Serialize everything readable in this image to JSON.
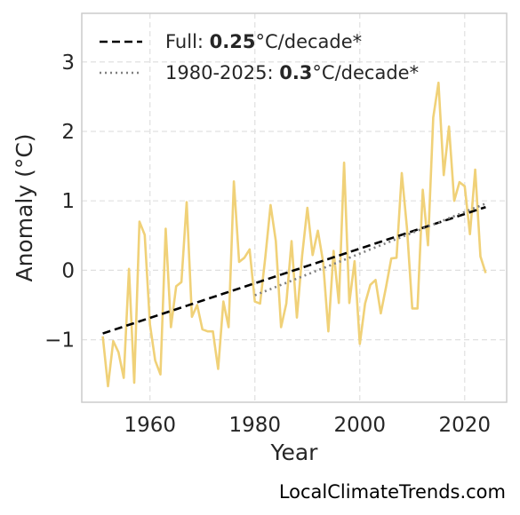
{
  "chart_data": {
    "type": "line",
    "xlabel": "Year",
    "ylabel": "Anomaly (°C)",
    "xlim": [
      1947,
      2028
    ],
    "ylim": [
      -1.9,
      3.7
    ],
    "x_ticks": [
      1960,
      1980,
      2000,
      2020
    ],
    "x_tick_labels": [
      "1960",
      "1980",
      "2000",
      "2020"
    ],
    "y_ticks": [
      -1,
      0,
      1,
      2,
      3
    ],
    "y_tick_labels": [
      "−1",
      "0",
      "1",
      "2",
      "3"
    ],
    "grid": true,
    "legend_position": "top-left",
    "series": [
      {
        "color": "#f0d178",
        "x": [
          1951,
          1952,
          1953,
          1954,
          1955,
          1956,
          1957,
          1958,
          1959,
          1960,
          1961,
          1962,
          1963,
          1964,
          1965,
          1966,
          1967,
          1968,
          1969,
          1970,
          1971,
          1972,
          1973,
          1974,
          1975,
          1976,
          1977,
          1978,
          1979,
          1980,
          1981,
          1982,
          1983,
          1984,
          1985,
          1986,
          1987,
          1988,
          1989,
          1990,
          1991,
          1992,
          1993,
          1994,
          1995,
          1996,
          1997,
          1998,
          1999,
          2000,
          2001,
          2002,
          2003,
          2004,
          2005,
          2006,
          2007,
          2008,
          2009,
          2010,
          2011,
          2012,
          2013,
          2014,
          2015,
          2016,
          2017,
          2018,
          2019,
          2020,
          2021,
          2022,
          2023,
          2024
        ],
        "values": [
          -0.95,
          -1.67,
          -1.02,
          -1.18,
          -1.55,
          0.02,
          -1.62,
          0.7,
          0.51,
          -0.78,
          -1.3,
          -1.5,
          0.6,
          -0.82,
          -0.23,
          -0.17,
          0.98,
          -0.67,
          -0.5,
          -0.85,
          -0.88,
          -0.88,
          -1.42,
          -0.45,
          -0.82,
          1.28,
          0.12,
          0.18,
          0.3,
          -0.45,
          -0.48,
          0.19,
          0.94,
          0.42,
          -0.82,
          -0.48,
          0.42,
          -0.68,
          0.21,
          0.9,
          0.22,
          0.57,
          0.12,
          -0.88,
          0.28,
          -0.47,
          1.55,
          -0.47,
          0.13,
          -1.06,
          -0.48,
          -0.21,
          -0.14,
          -0.62,
          -0.24,
          0.17,
          0.18,
          1.4,
          0.6,
          -0.55,
          -0.55,
          1.16,
          0.36,
          2.2,
          2.7,
          1.37,
          2.07,
          1.0,
          1.27,
          1.21,
          0.52,
          1.45,
          0.2,
          -0.04
        ]
      }
    ],
    "trends": [
      {
        "label_prefix": "Full: ",
        "label_value": "0.25",
        "label_suffix": "°C/decade*",
        "style": "dashed",
        "color": "#000000",
        "x": [
          1951,
          2024
        ],
        "values": [
          -0.91,
          0.91
        ]
      },
      {
        "label_prefix": "1980-2025: ",
        "label_value": "0.3",
        "label_suffix": "°C/decade*",
        "style": "dotted",
        "color": "#808080",
        "x": [
          1980,
          2024
        ],
        "values": [
          -0.36,
          0.96
        ]
      }
    ]
  },
  "watermark": "LocalClimateTrends.com"
}
